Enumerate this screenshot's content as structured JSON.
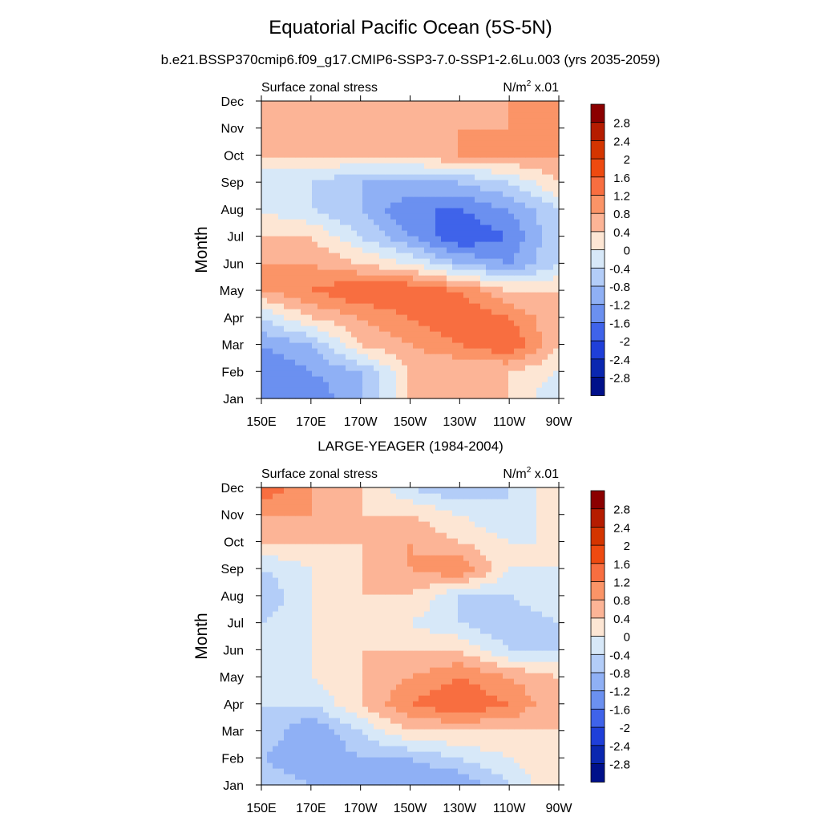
{
  "figure": {
    "title": "Equatorial Pacific Ocean (5S-5N)",
    "subtitle": "b.e21.BSSP370cmip6.f09_g17.CMIP6-SSP3-7.0-SSP1-2.6Lu.003 (yrs 2035-2059)",
    "second_panel_title": "LARGE-YEAGER (1984-2004)"
  },
  "colorbar": {
    "levels": [
      "2.8",
      "2.4",
      "2",
      "1.6",
      "1.2",
      "0.8",
      "0.4",
      "0",
      "-0.4",
      "-0.8",
      "-1.2",
      "-1.6",
      "-2",
      "-2.4",
      "-2.8"
    ],
    "colors": [
      "#8b0000",
      "#b51c00",
      "#d43500",
      "#ee4a10",
      "#f86e40",
      "#fb9467",
      "#fcb496",
      "#fde6d4",
      "#d7e8f8",
      "#b3cdf8",
      "#8fb0f5",
      "#6b90f0",
      "#3f63ea",
      "#1f3fd9",
      "#0a27b0",
      "#00108a"
    ]
  },
  "chart_data": [
    {
      "type": "heatmap",
      "title": "Equatorial Pacific Ocean (5S-5N)",
      "subtitle": "b.e21.BSSP370cmip6.f09_g17.CMIP6-SSP3-7.0-SSP1-2.6Lu.003 (yrs 2035-2059)",
      "left_label": "Surface zonal stress",
      "right_label": "N/m",
      "units_sup": "2",
      "units_suffix": " x.01",
      "ylabel": "Month",
      "xlabel": "",
      "x": [
        "150E",
        "170E",
        "170W",
        "150W",
        "130W",
        "110W",
        "90W"
      ],
      "y": [
        "Jan",
        "Feb",
        "Mar",
        "Apr",
        "May",
        "Jun",
        "Jul",
        "Aug",
        "Sep",
        "Oct",
        "Nov",
        "Dec"
      ],
      "values": [
        [
          -1.2,
          -1.6,
          -0.8,
          0.4,
          0.4,
          0.4,
          -0.4
        ],
        [
          -1.6,
          -1.2,
          -0.8,
          0.4,
          0.4,
          0.4,
          0.0
        ],
        [
          -1.2,
          -0.8,
          0.4,
          0.8,
          1.2,
          1.6,
          0.4
        ],
        [
          -0.4,
          0.4,
          0.8,
          1.2,
          1.6,
          1.2,
          0.4
        ],
        [
          0.8,
          1.2,
          1.6,
          1.6,
          1.2,
          0.4,
          0.4
        ],
        [
          0.8,
          0.8,
          0.4,
          0.0,
          -0.8,
          -1.2,
          -0.4
        ],
        [
          0.4,
          0.4,
          -0.4,
          -1.2,
          -2.0,
          -1.6,
          -0.4
        ],
        [
          0.0,
          -0.4,
          -0.8,
          -1.6,
          -1.6,
          -1.2,
          -0.4
        ],
        [
          -0.4,
          -0.4,
          -0.8,
          -0.8,
          -0.8,
          -0.4,
          0.4
        ],
        [
          0.4,
          0.4,
          0.4,
          0.4,
          0.8,
          0.8,
          0.8
        ],
        [
          0.8,
          0.4,
          0.4,
          0.4,
          0.8,
          0.8,
          0.8
        ],
        [
          0.8,
          0.8,
          0.4,
          0.4,
          0.4,
          0.8,
          0.8
        ]
      ]
    },
    {
      "type": "heatmap",
      "title": "LARGE-YEAGER (1984-2004)",
      "left_label": "Surface zonal stress",
      "right_label": "N/m",
      "units_sup": "2",
      "units_suffix": " x.01",
      "ylabel": "Month",
      "xlabel": "",
      "x": [
        "150E",
        "170E",
        "170W",
        "150W",
        "130W",
        "110W",
        "90W"
      ],
      "y": [
        "Jan",
        "Feb",
        "Mar",
        "Apr",
        "May",
        "Jun",
        "Jul",
        "Aug",
        "Sep",
        "Oct",
        "Nov",
        "Dec"
      ],
      "values": [
        [
          -0.4,
          -0.8,
          -1.2,
          -1.2,
          -1.2,
          -0.4,
          0.4
        ],
        [
          -0.8,
          -1.2,
          -0.8,
          -0.8,
          -0.4,
          0.0,
          0.4
        ],
        [
          -0.4,
          -1.2,
          -0.4,
          0.4,
          0.4,
          0.4,
          0.4
        ],
        [
          -0.4,
          -0.4,
          0.4,
          1.2,
          1.6,
          1.2,
          0.4
        ],
        [
          -0.4,
          0.0,
          0.4,
          0.8,
          1.2,
          0.8,
          0.4
        ],
        [
          -0.4,
          0.0,
          0.4,
          0.4,
          0.4,
          -0.4,
          -0.4
        ],
        [
          -0.4,
          0.0,
          0.4,
          0.0,
          -0.4,
          -0.8,
          -0.4
        ],
        [
          -0.8,
          0.0,
          0.4,
          0.4,
          -0.4,
          -0.4,
          0.0
        ],
        [
          -0.4,
          0.0,
          0.4,
          0.8,
          1.2,
          0.0,
          0.0
        ],
        [
          0.4,
          0.4,
          0.4,
          0.8,
          0.4,
          0.0,
          0.0
        ],
        [
          0.8,
          0.8,
          0.4,
          0.4,
          0.0,
          -0.4,
          0.4
        ],
        [
          1.6,
          0.8,
          0.4,
          -0.4,
          -0.8,
          -0.4,
          0.4
        ]
      ]
    }
  ]
}
